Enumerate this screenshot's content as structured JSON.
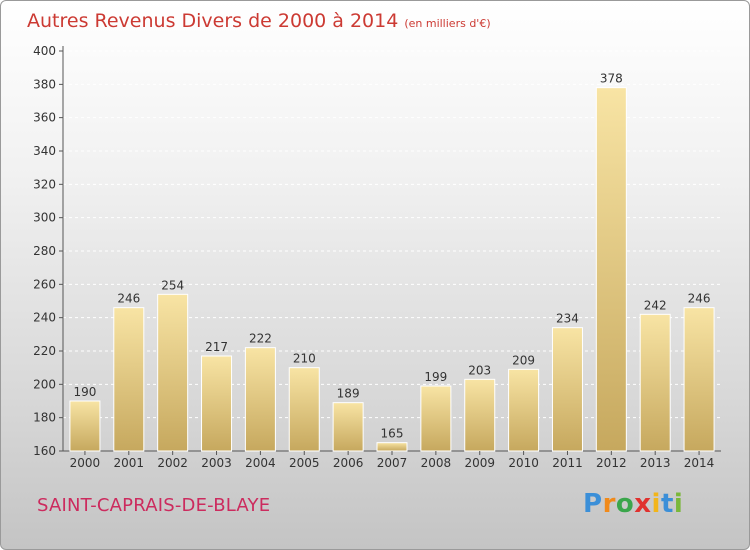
{
  "title": "Autres Revenus Divers de 2000 à 2014",
  "unit": "(en milliers d'€)",
  "town": "SAINT-CAPRAIS-DE-BLAYE",
  "logo": [
    "P",
    "r",
    "o",
    "x",
    "i",
    "t",
    "i"
  ],
  "colors": {
    "title": "#cc3a33",
    "town": "#cc2b5e",
    "bar_light": "#f7e2a0",
    "bar_dark": "#c8aa60"
  },
  "chart_data": {
    "type": "bar",
    "title": "Autres Revenus Divers de 2000 à 2014",
    "xlabel": "",
    "ylabel": "",
    "categories": [
      "2000",
      "2001",
      "2002",
      "2003",
      "2004",
      "2005",
      "2006",
      "2007",
      "2008",
      "2009",
      "2010",
      "2011",
      "2012",
      "2013",
      "2014"
    ],
    "values": [
      190,
      246,
      254,
      217,
      222,
      210,
      189,
      165,
      199,
      203,
      209,
      234,
      378,
      242,
      246
    ],
    "ylim": [
      160,
      400
    ],
    "yticks": [
      160,
      180,
      200,
      220,
      240,
      260,
      280,
      300,
      320,
      340,
      360,
      380,
      400
    ],
    "grid": true,
    "legend": "none"
  }
}
